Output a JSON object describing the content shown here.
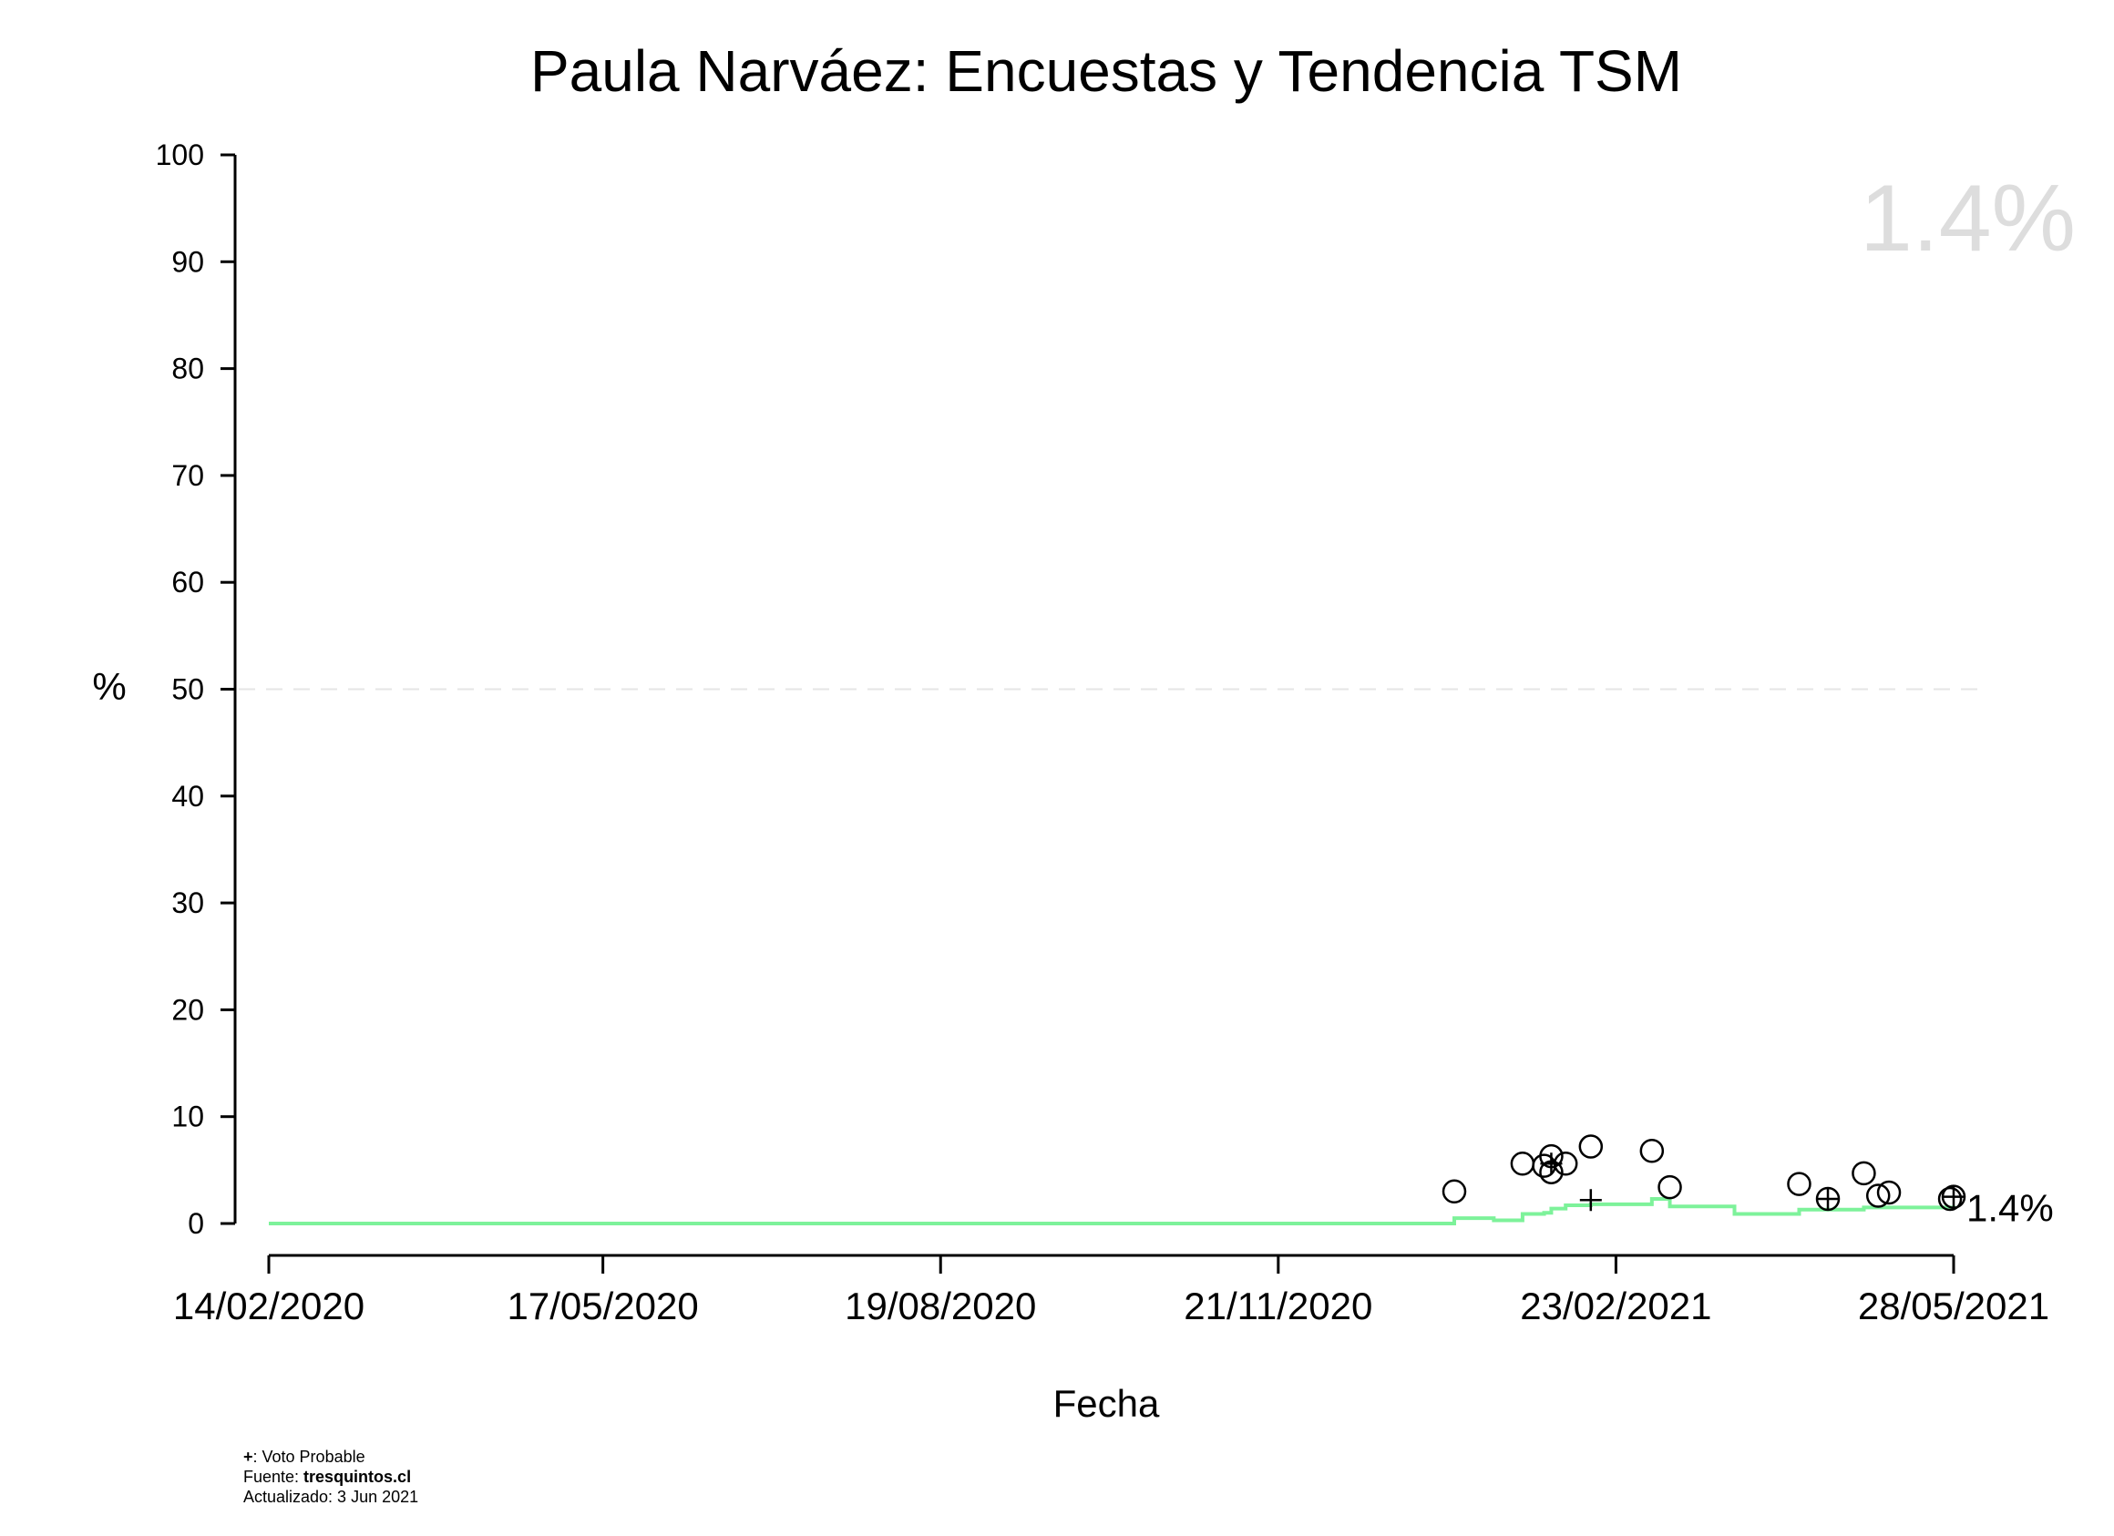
{
  "chart_data": {
    "type": "scatter",
    "title": "Paula Narváez: Encuestas y Tendencia TSM",
    "xlabel": "Fecha",
    "ylabel": "%",
    "ylim": [
      0,
      100
    ],
    "yticks": [
      0,
      10,
      20,
      30,
      40,
      50,
      60,
      70,
      80,
      90,
      100
    ],
    "xlim": [
      "2020-02-14",
      "2021-05-28"
    ],
    "xticks": [
      {
        "date": "2020-02-14",
        "label": "14/02/2020"
      },
      {
        "date": "2020-05-17",
        "label": "17/05/2020"
      },
      {
        "date": "2020-08-19",
        "label": "19/08/2020"
      },
      {
        "date": "2020-11-21",
        "label": "21/11/2020"
      },
      {
        "date": "2021-02-23",
        "label": "23/02/2021"
      },
      {
        "date": "2021-05-28",
        "label": "28/05/2021"
      }
    ],
    "reference_line": {
      "y": 50,
      "style": "dashed",
      "color": "#e6e6e6"
    },
    "big_label": "1.4%",
    "end_label": "1.4%",
    "series": [
      {
        "kind": "points",
        "marker": "circle",
        "points": [
          {
            "x": "2021-01-09",
            "y": 3.0
          },
          {
            "x": "2021-01-28",
            "y": 5.6
          },
          {
            "x": "2021-02-03",
            "y": 5.4
          },
          {
            "x": "2021-02-05",
            "y": 6.3
          },
          {
            "x": "2021-02-05",
            "y": 4.8
          },
          {
            "x": "2021-02-09",
            "y": 5.6
          },
          {
            "x": "2021-02-16",
            "y": 7.2
          },
          {
            "x": "2021-03-05",
            "y": 6.8
          },
          {
            "x": "2021-03-10",
            "y": 3.4
          },
          {
            "x": "2021-04-15",
            "y": 3.7
          },
          {
            "x": "2021-04-23",
            "y": 2.3
          },
          {
            "x": "2021-05-03",
            "y": 4.7
          },
          {
            "x": "2021-05-07",
            "y": 2.6
          },
          {
            "x": "2021-05-10",
            "y": 2.9
          },
          {
            "x": "2021-05-27",
            "y": 2.3
          },
          {
            "x": "2021-05-28",
            "y": 2.5
          }
        ]
      },
      {
        "kind": "points",
        "marker": "plus",
        "name": "Voto Probable",
        "points": [
          {
            "x": "2021-02-05",
            "y": 5.6
          },
          {
            "x": "2021-02-16",
            "y": 2.2
          },
          {
            "x": "2021-04-23",
            "y": 2.3
          },
          {
            "x": "2021-05-28",
            "y": 2.5
          }
        ]
      },
      {
        "kind": "step",
        "color": "#7df29a",
        "points": [
          {
            "x": "2020-02-14",
            "y": 0.0
          },
          {
            "x": "2021-01-09",
            "y": 0.5
          },
          {
            "x": "2021-01-20",
            "y": 0.3
          },
          {
            "x": "2021-01-28",
            "y": 0.9
          },
          {
            "x": "2021-02-03",
            "y": 1.0
          },
          {
            "x": "2021-02-05",
            "y": 1.4
          },
          {
            "x": "2021-02-09",
            "y": 1.7
          },
          {
            "x": "2021-02-16",
            "y": 1.8
          },
          {
            "x": "2021-03-05",
            "y": 2.3
          },
          {
            "x": "2021-03-10",
            "y": 1.6
          },
          {
            "x": "2021-03-28",
            "y": 0.9
          },
          {
            "x": "2021-04-15",
            "y": 1.3
          },
          {
            "x": "2021-05-03",
            "y": 1.5
          },
          {
            "x": "2021-05-28",
            "y": 1.4
          }
        ]
      }
    ]
  },
  "footer": {
    "legend_symbol": "+",
    "legend_text": ": Voto Probable",
    "source_prefix": "Fuente: ",
    "source_name": "tresquintos.cl",
    "updated": "Actualizado: 3 Jun 2021"
  }
}
